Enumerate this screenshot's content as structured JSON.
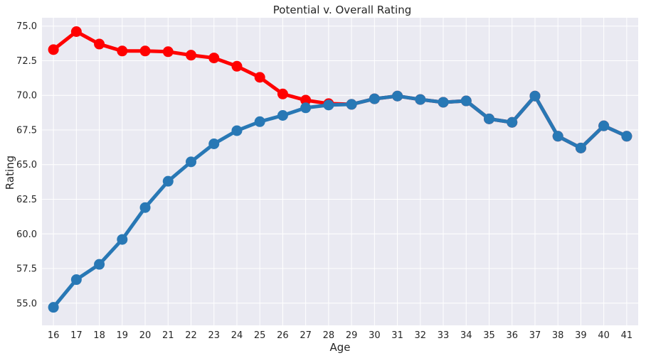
{
  "chart_data": {
    "type": "line",
    "title": "Potential v. Overall Rating",
    "xlabel": "Age",
    "ylabel": "Rating",
    "categories": [
      "16",
      "17",
      "18",
      "19",
      "20",
      "21",
      "22",
      "23",
      "24",
      "25",
      "26",
      "27",
      "28",
      "29",
      "30",
      "31",
      "32",
      "33",
      "34",
      "35",
      "36",
      "37",
      "38",
      "39",
      "40",
      "41"
    ],
    "ylim": [
      53.4,
      75.6
    ],
    "yticks": [
      "55.0",
      "57.5",
      "60.0",
      "62.5",
      "65.0",
      "67.5",
      "70.0",
      "72.5",
      "75.0"
    ],
    "grid": true,
    "legend": "none",
    "series": [
      {
        "color": "#ff0000",
        "values": [
          73.3,
          74.6,
          73.7,
          73.2,
          73.2,
          73.15,
          72.9,
          72.7,
          72.1,
          71.3,
          70.1,
          69.65,
          69.4,
          69.35,
          69.75,
          69.95,
          69.7,
          69.5,
          69.6,
          68.3,
          68.05,
          69.95,
          67.05,
          66.2,
          67.8,
          67.05
        ]
      },
      {
        "color": "#2878b5",
        "values": [
          54.7,
          56.7,
          57.8,
          59.6,
          61.9,
          63.8,
          65.2,
          66.5,
          67.45,
          68.1,
          68.55,
          69.1,
          69.3,
          69.35,
          69.75,
          69.95,
          69.7,
          69.5,
          69.6,
          68.3,
          68.05,
          69.95,
          67.05,
          66.2,
          67.8,
          67.05
        ]
      }
    ]
  },
  "style": {
    "plot_background": "#eaeaf2",
    "grid_color": "#ffffff"
  }
}
